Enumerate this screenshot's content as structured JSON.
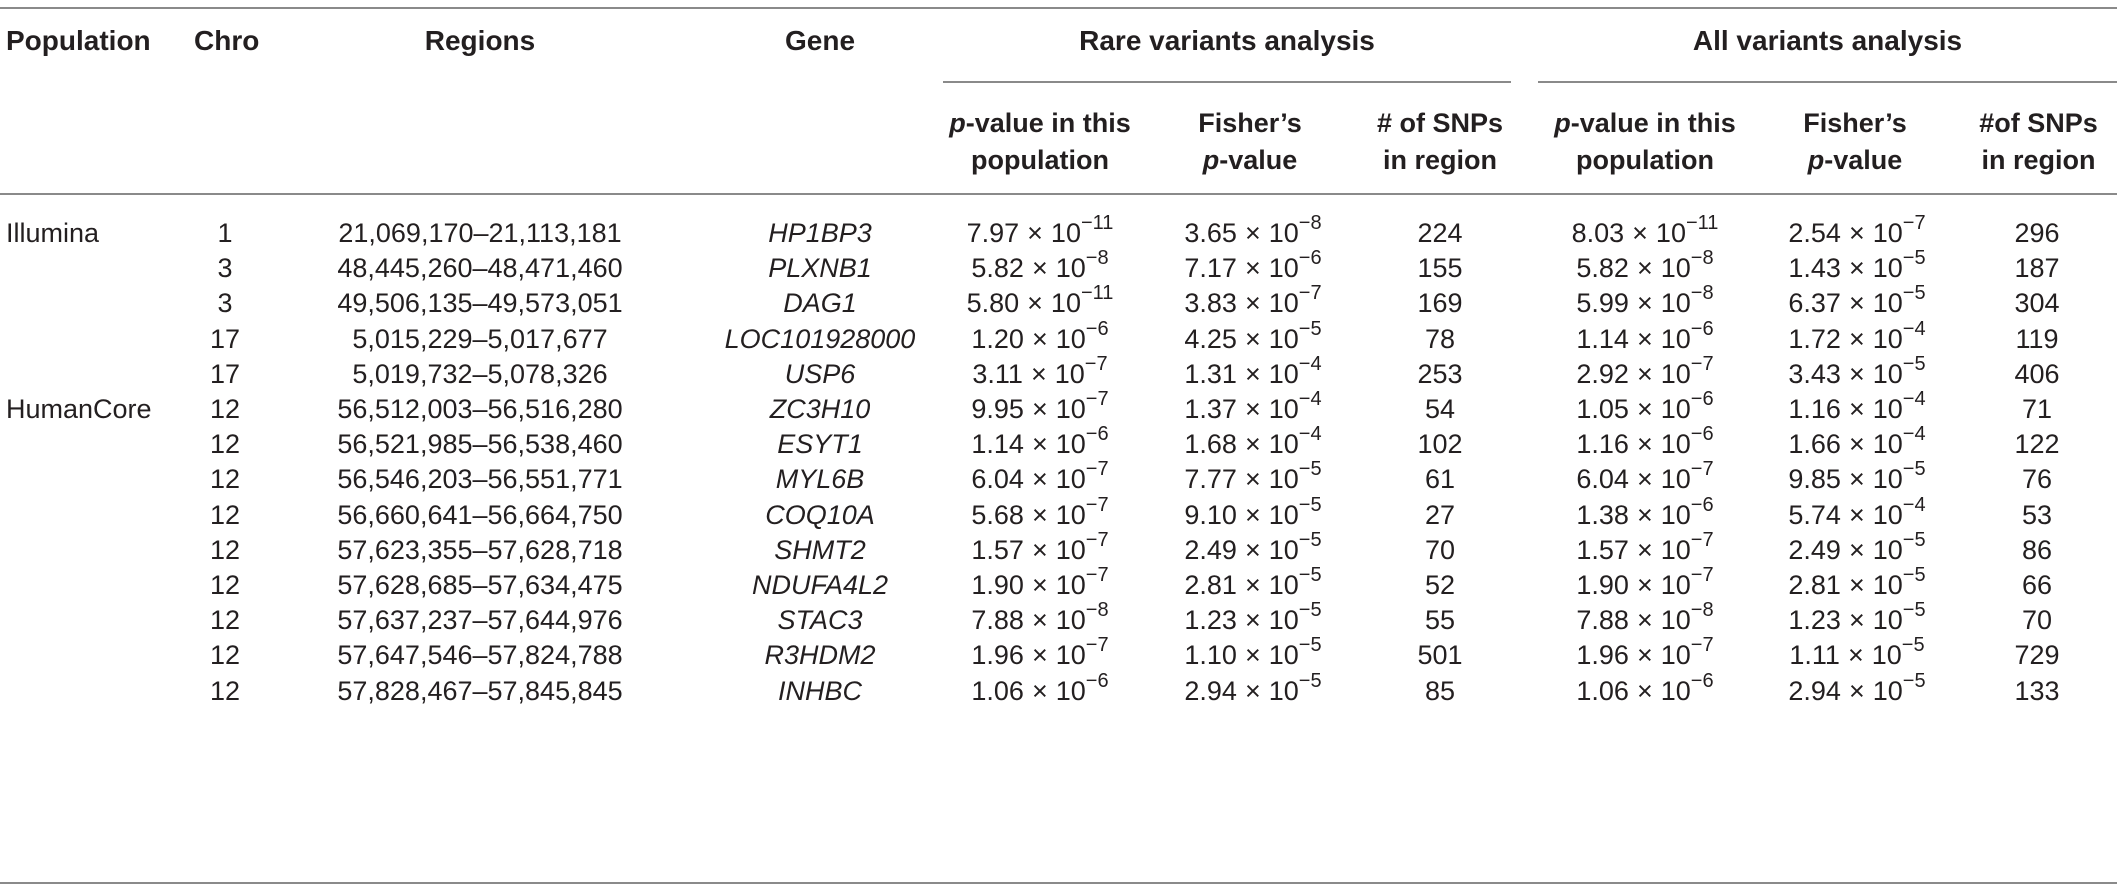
{
  "table": {
    "headers": {
      "population": "Population",
      "chro": "Chro",
      "regions": "Regions",
      "gene": "Gene",
      "rare_group": "Rare variants analysis",
      "all_group": "All variants analysis",
      "pvalue_italic": "p",
      "pvalue_line1": "-value in this",
      "pvalue_line2": "population",
      "fisher_line1": "Fisher’s",
      "fisher_p": "p",
      "fisher_line2": "-value",
      "snps_rare_line1": "# of SNPs",
      "snps_all_line1": "#of SNPs",
      "snps_line2": "in region"
    },
    "times_symbol": "×",
    "mantissa_base": "10",
    "rows": [
      {
        "population": "Illumina",
        "chro": "1",
        "region": "21,069,170–21,113,181",
        "gene": "HP1BP3",
        "rare_p": [
          "7.97",
          "−11"
        ],
        "rare_fisher": [
          "3.65",
          "−8"
        ],
        "rare_snps": "224",
        "all_p": [
          "8.03",
          "−11"
        ],
        "all_fisher": [
          "2.54",
          "−7"
        ],
        "all_snps": "296"
      },
      {
        "population": "",
        "chro": "3",
        "region": "48,445,260–48,471,460",
        "gene": "PLXNB1",
        "rare_p": [
          "5.82",
          "−8"
        ],
        "rare_fisher": [
          "7.17",
          "−6"
        ],
        "rare_snps": "155",
        "all_p": [
          "5.82",
          "−8"
        ],
        "all_fisher": [
          "1.43",
          "−5"
        ],
        "all_snps": "187"
      },
      {
        "population": "",
        "chro": "3",
        "region": "49,506,135–49,573,051",
        "gene": "DAG1",
        "rare_p": [
          "5.80",
          "−11"
        ],
        "rare_fisher": [
          "3.83",
          "−7"
        ],
        "rare_snps": "169",
        "all_p": [
          "5.99",
          "−8"
        ],
        "all_fisher": [
          "6.37",
          "−5"
        ],
        "all_snps": "304"
      },
      {
        "population": "",
        "chro": "17",
        "region": "5,015,229–5,017,677",
        "gene": "LOC101928000",
        "rare_p": [
          "1.20",
          "−6"
        ],
        "rare_fisher": [
          "4.25",
          "−5"
        ],
        "rare_snps": "78",
        "all_p": [
          "1.14",
          "−6"
        ],
        "all_fisher": [
          "1.72",
          "−4"
        ],
        "all_snps": "119"
      },
      {
        "population": "",
        "chro": "17",
        "region": "5,019,732–5,078,326",
        "gene": "USP6",
        "rare_p": [
          "3.11",
          "−7"
        ],
        "rare_fisher": [
          "1.31",
          "−4"
        ],
        "rare_snps": "253",
        "all_p": [
          "2.92",
          "−7"
        ],
        "all_fisher": [
          "3.43",
          "−5"
        ],
        "all_snps": "406"
      },
      {
        "population": "HumanCore",
        "chro": "12",
        "region": "56,512,003–56,516,280",
        "gene": "ZC3H10",
        "rare_p": [
          "9.95",
          "−7"
        ],
        "rare_fisher": [
          "1.37",
          "−4"
        ],
        "rare_snps": "54",
        "all_p": [
          "1.05",
          "−6"
        ],
        "all_fisher": [
          "1.16",
          "−4"
        ],
        "all_snps": "71"
      },
      {
        "population": "",
        "chro": "12",
        "region": "56,521,985–56,538,460",
        "gene": "ESYT1",
        "rare_p": [
          "1.14",
          "−6"
        ],
        "rare_fisher": [
          "1.68",
          "−4"
        ],
        "rare_snps": "102",
        "all_p": [
          "1.16",
          "−6"
        ],
        "all_fisher": [
          "1.66",
          "−4"
        ],
        "all_snps": "122"
      },
      {
        "population": "",
        "chro": "12",
        "region": "56,546,203–56,551,771",
        "gene": "MYL6B",
        "rare_p": [
          "6.04",
          "−7"
        ],
        "rare_fisher": [
          "7.77",
          "−5"
        ],
        "rare_snps": "61",
        "all_p": [
          "6.04",
          "−7"
        ],
        "all_fisher": [
          "9.85",
          "−5"
        ],
        "all_snps": "76"
      },
      {
        "population": "",
        "chro": "12",
        "region": "56,660,641–56,664,750",
        "gene": "COQ10A",
        "rare_p": [
          "5.68",
          "−7"
        ],
        "rare_fisher": [
          "9.10",
          "−5"
        ],
        "rare_snps": "27",
        "all_p": [
          "1.38",
          "−6"
        ],
        "all_fisher": [
          "5.74",
          "−4"
        ],
        "all_snps": "53"
      },
      {
        "population": "",
        "chro": "12",
        "region": "57,623,355–57,628,718",
        "gene": "SHMT2",
        "rare_p": [
          "1.57",
          "−7"
        ],
        "rare_fisher": [
          "2.49",
          "−5"
        ],
        "rare_snps": "70",
        "all_p": [
          "1.57",
          "−7"
        ],
        "all_fisher": [
          "2.49",
          "−5"
        ],
        "all_snps": "86"
      },
      {
        "population": "",
        "chro": "12",
        "region": "57,628,685–57,634,475",
        "gene": "NDUFA4L2",
        "rare_p": [
          "1.90",
          "−7"
        ],
        "rare_fisher": [
          "2.81",
          "−5"
        ],
        "rare_snps": "52",
        "all_p": [
          "1.90",
          "−7"
        ],
        "all_fisher": [
          "2.81",
          "−5"
        ],
        "all_snps": "66"
      },
      {
        "population": "",
        "chro": "12",
        "region": "57,637,237–57,644,976",
        "gene": "STAC3",
        "rare_p": [
          "7.88",
          "−8"
        ],
        "rare_fisher": [
          "1.23",
          "−5"
        ],
        "rare_snps": "55",
        "all_p": [
          "7.88",
          "−8"
        ],
        "all_fisher": [
          "1.23",
          "−5"
        ],
        "all_snps": "70"
      },
      {
        "population": "",
        "chro": "12",
        "region": "57,647,546–57,824,788",
        "gene": "R3HDM2",
        "rare_p": [
          "1.96",
          "−7"
        ],
        "rare_fisher": [
          "1.10",
          "−5"
        ],
        "rare_snps": "501",
        "all_p": [
          "1.96",
          "−7"
        ],
        "all_fisher": [
          "1.11",
          "−5"
        ],
        "all_snps": "729"
      },
      {
        "population": "",
        "chro": "12",
        "region": "57,828,467–57,845,845",
        "gene": "INHBC",
        "rare_p": [
          "1.06",
          "−6"
        ],
        "rare_fisher": [
          "2.94",
          "−5"
        ],
        "rare_snps": "85",
        "all_p": [
          "1.06",
          "−6"
        ],
        "all_fisher": [
          "2.94",
          "−5"
        ],
        "all_snps": "133"
      }
    ]
  }
}
